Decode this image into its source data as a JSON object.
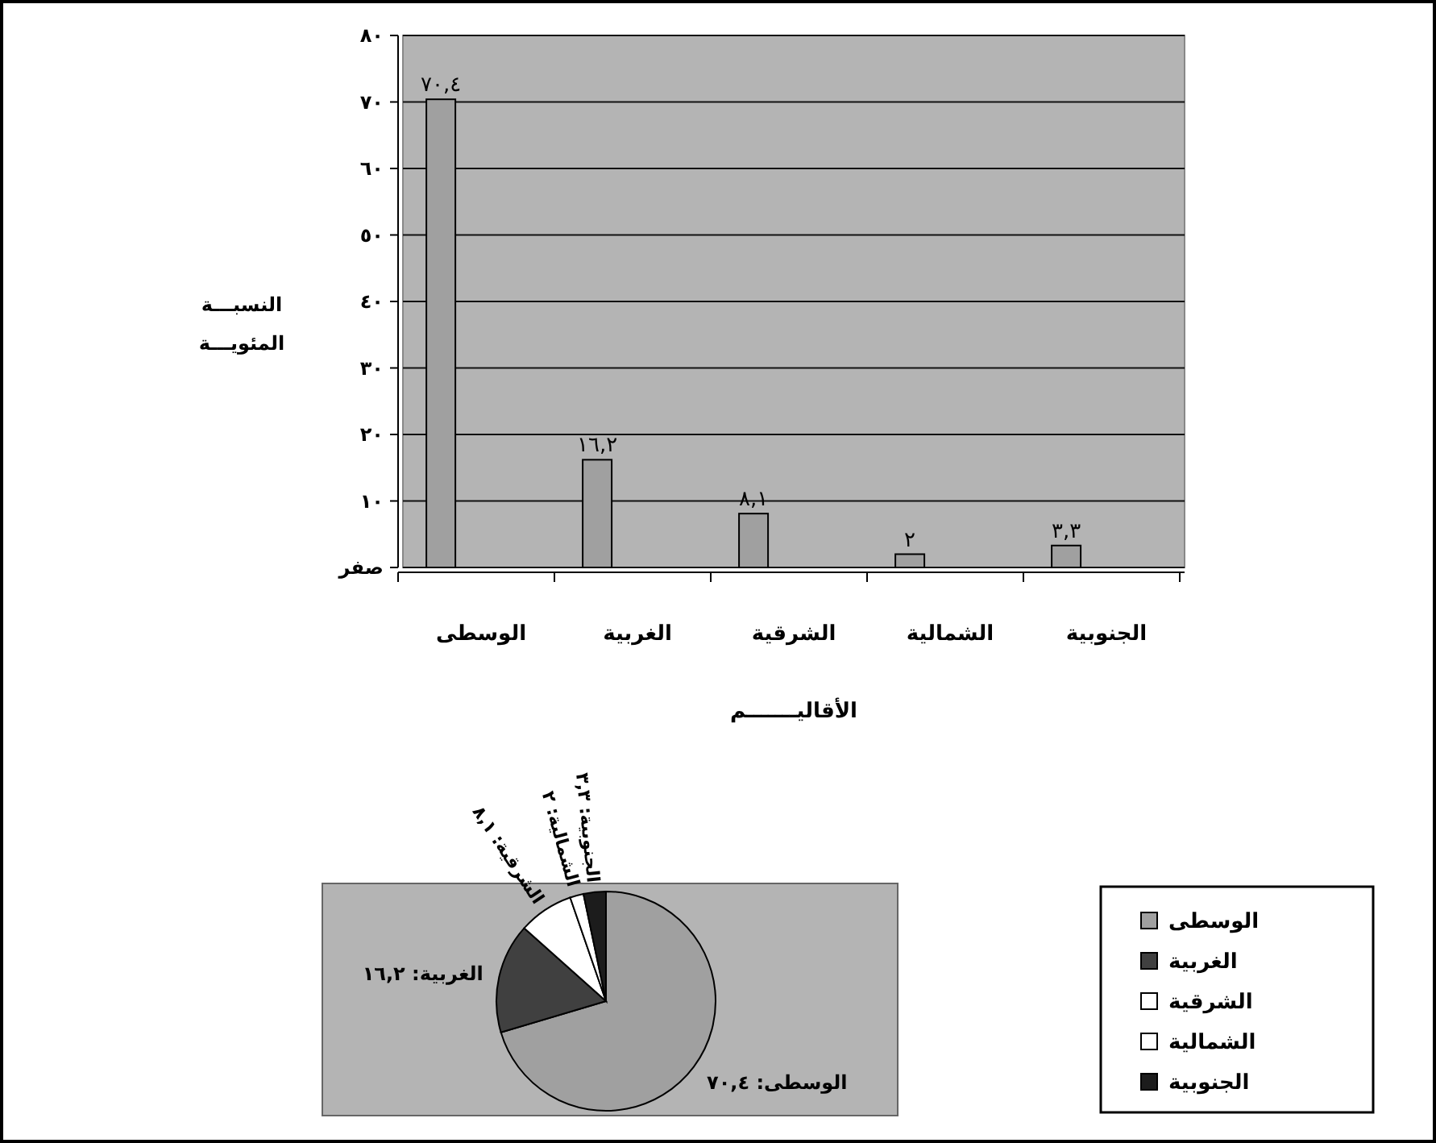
{
  "chart_data": [
    {
      "type": "bar",
      "categories": [
        "الوسطى",
        "الغربية",
        "الشرقية",
        "الشمالية",
        "الجنوبية"
      ],
      "values": [
        70.4,
        16.2,
        8.1,
        2,
        3.3
      ],
      "color": "#a0a0a0",
      "value_labels": [
        "٧٠,٤",
        "١٦,٢",
        "٨,١",
        "٢",
        "٣,٣"
      ],
      "ylim": [
        0,
        80
      ],
      "yticks": [
        {
          "value": 0,
          "label": "صفر"
        },
        {
          "value": 10,
          "label": "١٠"
        },
        {
          "value": 20,
          "label": "٢٠"
        },
        {
          "value": 30,
          "label": "٣٠"
        },
        {
          "value": 40,
          "label": "٤٠"
        },
        {
          "value": 50,
          "label": "٥٠"
        },
        {
          "value": 60,
          "label": "٦٠"
        },
        {
          "value": 70,
          "label": "٧٠"
        },
        {
          "value": 80,
          "label": "٨٠"
        }
      ],
      "grid": "y",
      "xlabel": "الأقاليـــــــم",
      "ylabel": "النسبـــة\nالمئويـــة"
    },
    {
      "type": "pie",
      "categories": [
        "الوسطى",
        "الغربية",
        "الشرقية",
        "الشمالية",
        "الجنوبية"
      ],
      "values": [
        70.4,
        16.2,
        8.1,
        2,
        3.3
      ],
      "colors": [
        "#a0a0a0",
        "#404040",
        "#ffffff",
        "#ffffff",
        "#1c1c1c"
      ],
      "value_labels": [
        "الوسطى: ٧٠,٤",
        "الغربية: ١٦,٢",
        "الشرقية: ٨,١",
        "الشمالية: ٢",
        "الجنوبية: ٣,٣"
      ],
      "legend": "right"
    }
  ]
}
